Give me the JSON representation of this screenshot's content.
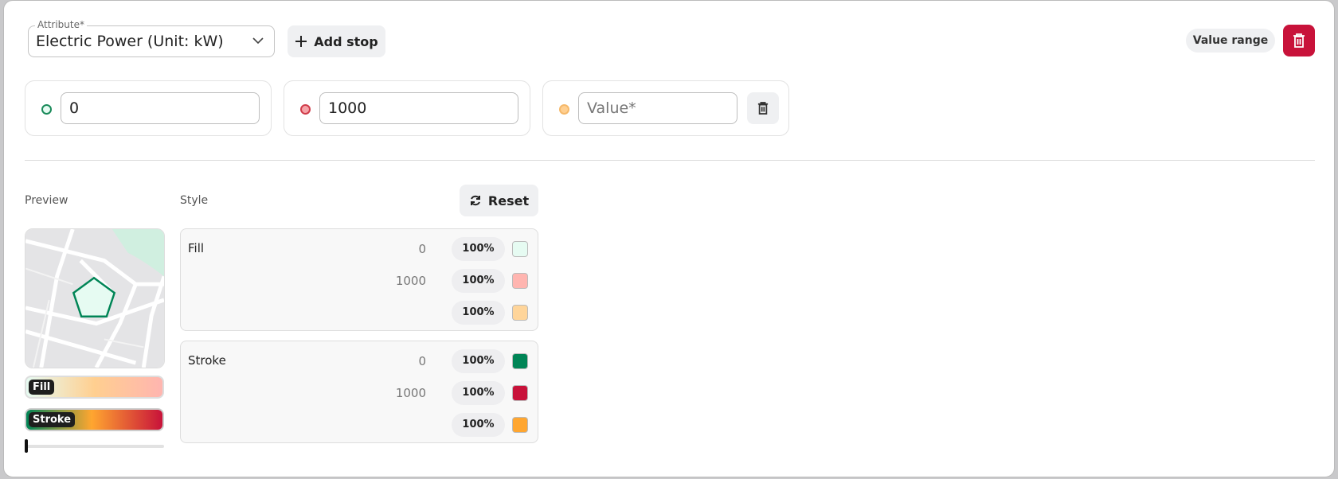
{
  "attribute": {
    "label": "Attribute*",
    "value": "Electric Power (Unit: kW)"
  },
  "toolbar": {
    "add_stop": "Add stop",
    "value_range": "Value range"
  },
  "stops": [
    {
      "value": "0",
      "placeholder": "Value*",
      "color": "#e6fbf2",
      "border": "#1a8a5a"
    },
    {
      "value": "1000",
      "placeholder": "Value*",
      "color": "#f5a3a8",
      "border": "#d03c4a"
    },
    {
      "value": "",
      "placeholder": "Value*",
      "color": "#ffcf90",
      "border": "#f5b86a"
    }
  ],
  "preview": {
    "label": "Preview",
    "fill_tag": "Fill",
    "stroke_tag": "Stroke",
    "slider_value": 0
  },
  "style": {
    "label": "Style",
    "reset": "Reset",
    "fill": {
      "name": "Fill",
      "rows": [
        {
          "value": "0",
          "opacity": "100%",
          "color": "#e6fbf2"
        },
        {
          "value": "1000",
          "opacity": "100%",
          "color": "#ffb5b0"
        },
        {
          "value": "",
          "opacity": "100%",
          "color": "#ffd59a"
        }
      ]
    },
    "stroke": {
      "name": "Stroke",
      "rows": [
        {
          "value": "0",
          "opacity": "100%",
          "color": "#008556"
        },
        {
          "value": "1000",
          "opacity": "100%",
          "color": "#c8123a"
        },
        {
          "value": "",
          "opacity": "100%",
          "color": "#ffa630"
        }
      ]
    }
  },
  "colors": {
    "danger": "#c8123a",
    "accent": "#008556"
  }
}
